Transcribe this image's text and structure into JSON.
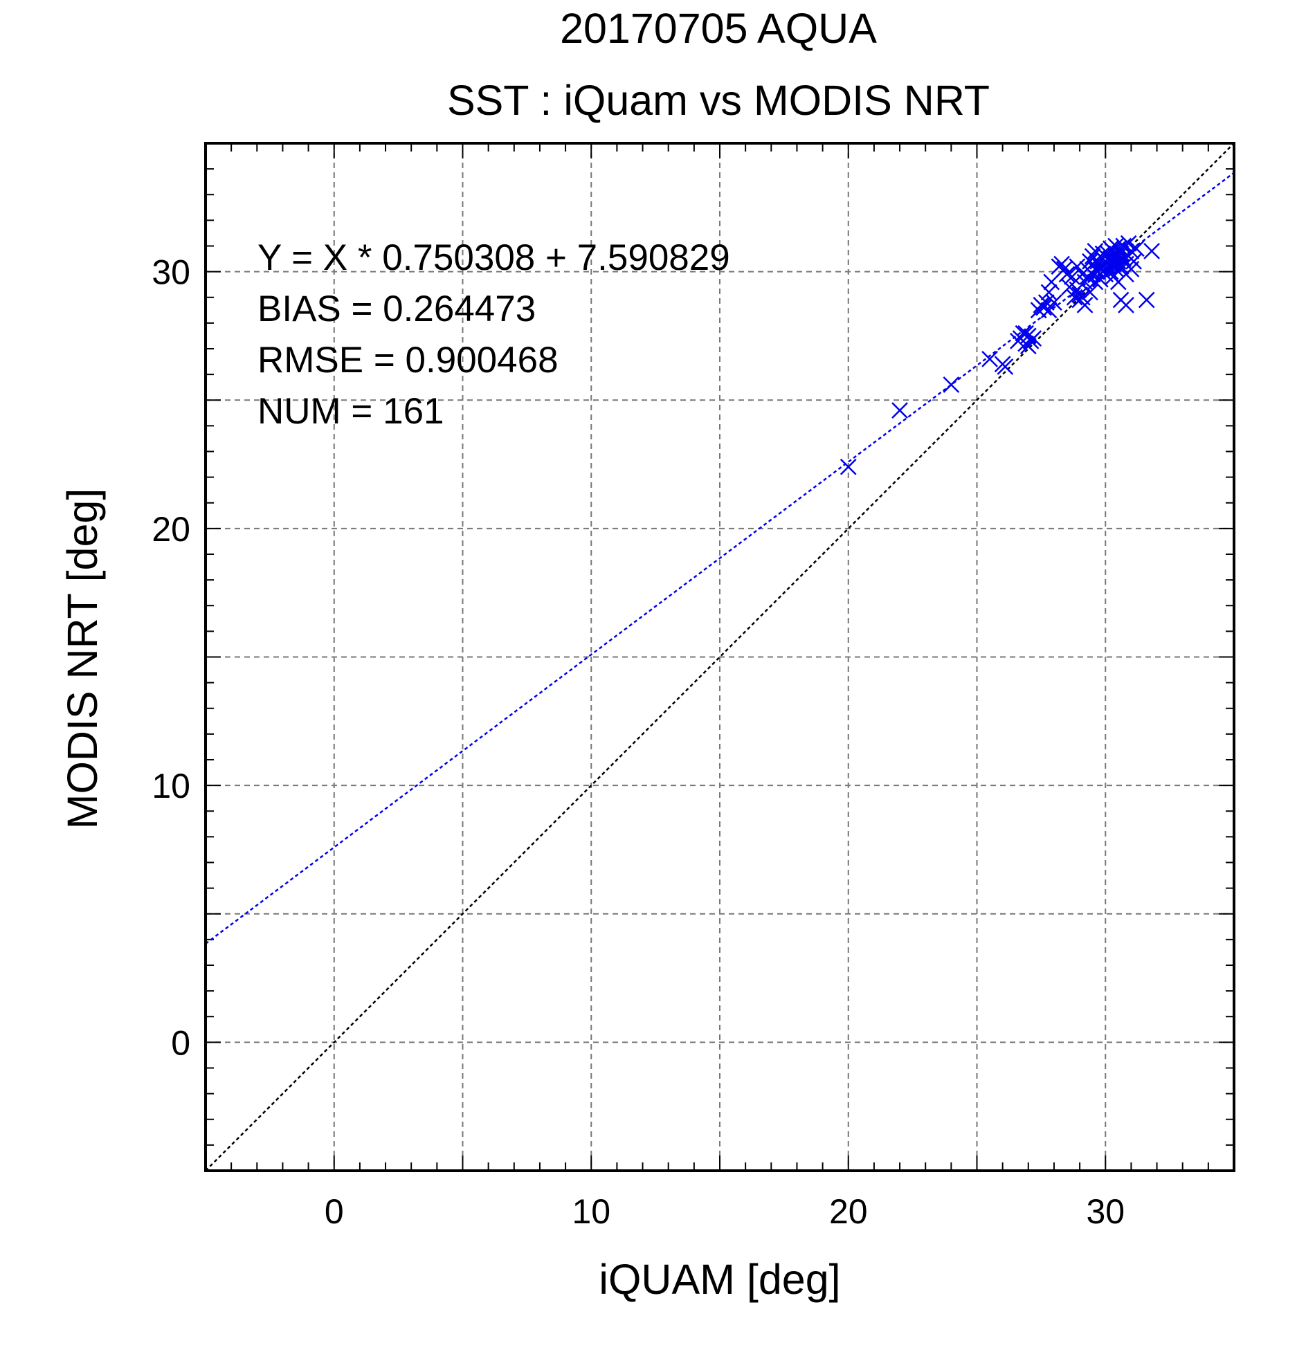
{
  "chart_data": {
    "type": "scatter",
    "title": "20170705 AQUA",
    "subtitle": "SST : iQuam vs MODIS NRT",
    "xlabel": "iQUAM [deg]",
    "ylabel": "MODIS NRT [deg]",
    "xlim": [
      -5,
      35
    ],
    "ylim": [
      -5,
      35
    ],
    "xticks": [
      0,
      10,
      20,
      30
    ],
    "yticks": [
      0,
      10,
      20,
      30
    ],
    "grid": true,
    "colors": {
      "points": "#0000ee",
      "fit_line": "#0000ee",
      "one_to_one": "#000000",
      "grid": "#777777"
    },
    "stats": [
      "Y = X * 0.750308 + 7.590829",
      "BIAS = 0.264473",
      "RMSE = 0.900468",
      "NUM = 161"
    ],
    "fit": {
      "slope": 0.750308,
      "intercept": 7.590829
    },
    "one_to_one": {
      "slope": 1,
      "intercept": 0
    },
    "marker": "x",
    "points": [
      [
        20.0,
        22.4
      ],
      [
        22.0,
        24.6
      ],
      [
        24.0,
        25.6
      ],
      [
        25.5,
        26.6
      ],
      [
        26.0,
        26.4
      ],
      [
        26.1,
        26.3
      ],
      [
        26.6,
        27.3
      ],
      [
        26.7,
        27.4
      ],
      [
        26.8,
        27.6
      ],
      [
        26.9,
        27.2
      ],
      [
        27.0,
        27.5
      ],
      [
        27.1,
        27.3
      ],
      [
        27.2,
        27.4
      ],
      [
        27.0,
        27.1
      ],
      [
        26.9,
        27.6
      ],
      [
        27.4,
        28.5
      ],
      [
        27.5,
        28.7
      ],
      [
        27.6,
        28.6
      ],
      [
        27.7,
        28.8
      ],
      [
        27.8,
        29.2
      ],
      [
        27.9,
        29.6
      ],
      [
        28.0,
        28.8
      ],
      [
        27.8,
        28.5
      ],
      [
        28.2,
        30.2
      ],
      [
        28.3,
        30.3
      ],
      [
        28.4,
        30.1
      ],
      [
        28.5,
        29.9
      ],
      [
        28.6,
        29.4
      ],
      [
        28.8,
        29.0
      ],
      [
        28.9,
        29.3
      ],
      [
        28.9,
        30.2
      ],
      [
        29.0,
        29.1
      ],
      [
        29.0,
        28.9
      ],
      [
        29.1,
        29.0
      ],
      [
        29.2,
        29.6
      ],
      [
        29.2,
        28.7
      ],
      [
        29.3,
        30.1
      ],
      [
        29.3,
        29.8
      ],
      [
        29.4,
        30.4
      ],
      [
        29.4,
        29.2
      ],
      [
        29.5,
        29.9
      ],
      [
        29.5,
        30.3
      ],
      [
        29.6,
        30.1
      ],
      [
        29.6,
        29.6
      ],
      [
        29.7,
        30.0
      ],
      [
        29.7,
        30.4
      ],
      [
        29.8,
        30.2
      ],
      [
        29.8,
        29.7
      ],
      [
        29.9,
        30.5
      ],
      [
        29.9,
        30.0
      ],
      [
        30.0,
        30.4
      ],
      [
        30.0,
        30.1
      ],
      [
        30.0,
        29.9
      ],
      [
        30.1,
        30.7
      ],
      [
        30.1,
        30.2
      ],
      [
        30.2,
        30.5
      ],
      [
        30.2,
        30.0
      ],
      [
        30.3,
        30.8
      ],
      [
        30.3,
        30.3
      ],
      [
        30.3,
        29.8
      ],
      [
        30.4,
        30.6
      ],
      [
        30.4,
        30.1
      ],
      [
        30.5,
        30.9
      ],
      [
        30.5,
        30.4
      ],
      [
        30.5,
        29.6
      ],
      [
        30.6,
        30.7
      ],
      [
        30.6,
        30.2
      ],
      [
        30.7,
        30.5
      ],
      [
        30.7,
        31.0
      ],
      [
        30.8,
        30.3
      ],
      [
        30.8,
        29.9
      ],
      [
        30.9,
        30.6
      ],
      [
        31.0,
        30.8
      ],
      [
        31.0,
        30.1
      ],
      [
        31.2,
        30.9
      ],
      [
        30.6,
        28.9
      ],
      [
        30.8,
        28.7
      ],
      [
        31.6,
        28.9
      ],
      [
        31.8,
        30.8
      ],
      [
        31.1,
        30.4
      ],
      [
        30.9,
        31.1
      ],
      [
        30.2,
        30.9
      ],
      [
        29.9,
        30.7
      ],
      [
        30.4,
        31.0
      ],
      [
        29.5,
        30.6
      ],
      [
        29.1,
        29.9
      ],
      [
        28.7,
        29.8
      ],
      [
        29.6,
        30.8
      ]
    ]
  }
}
